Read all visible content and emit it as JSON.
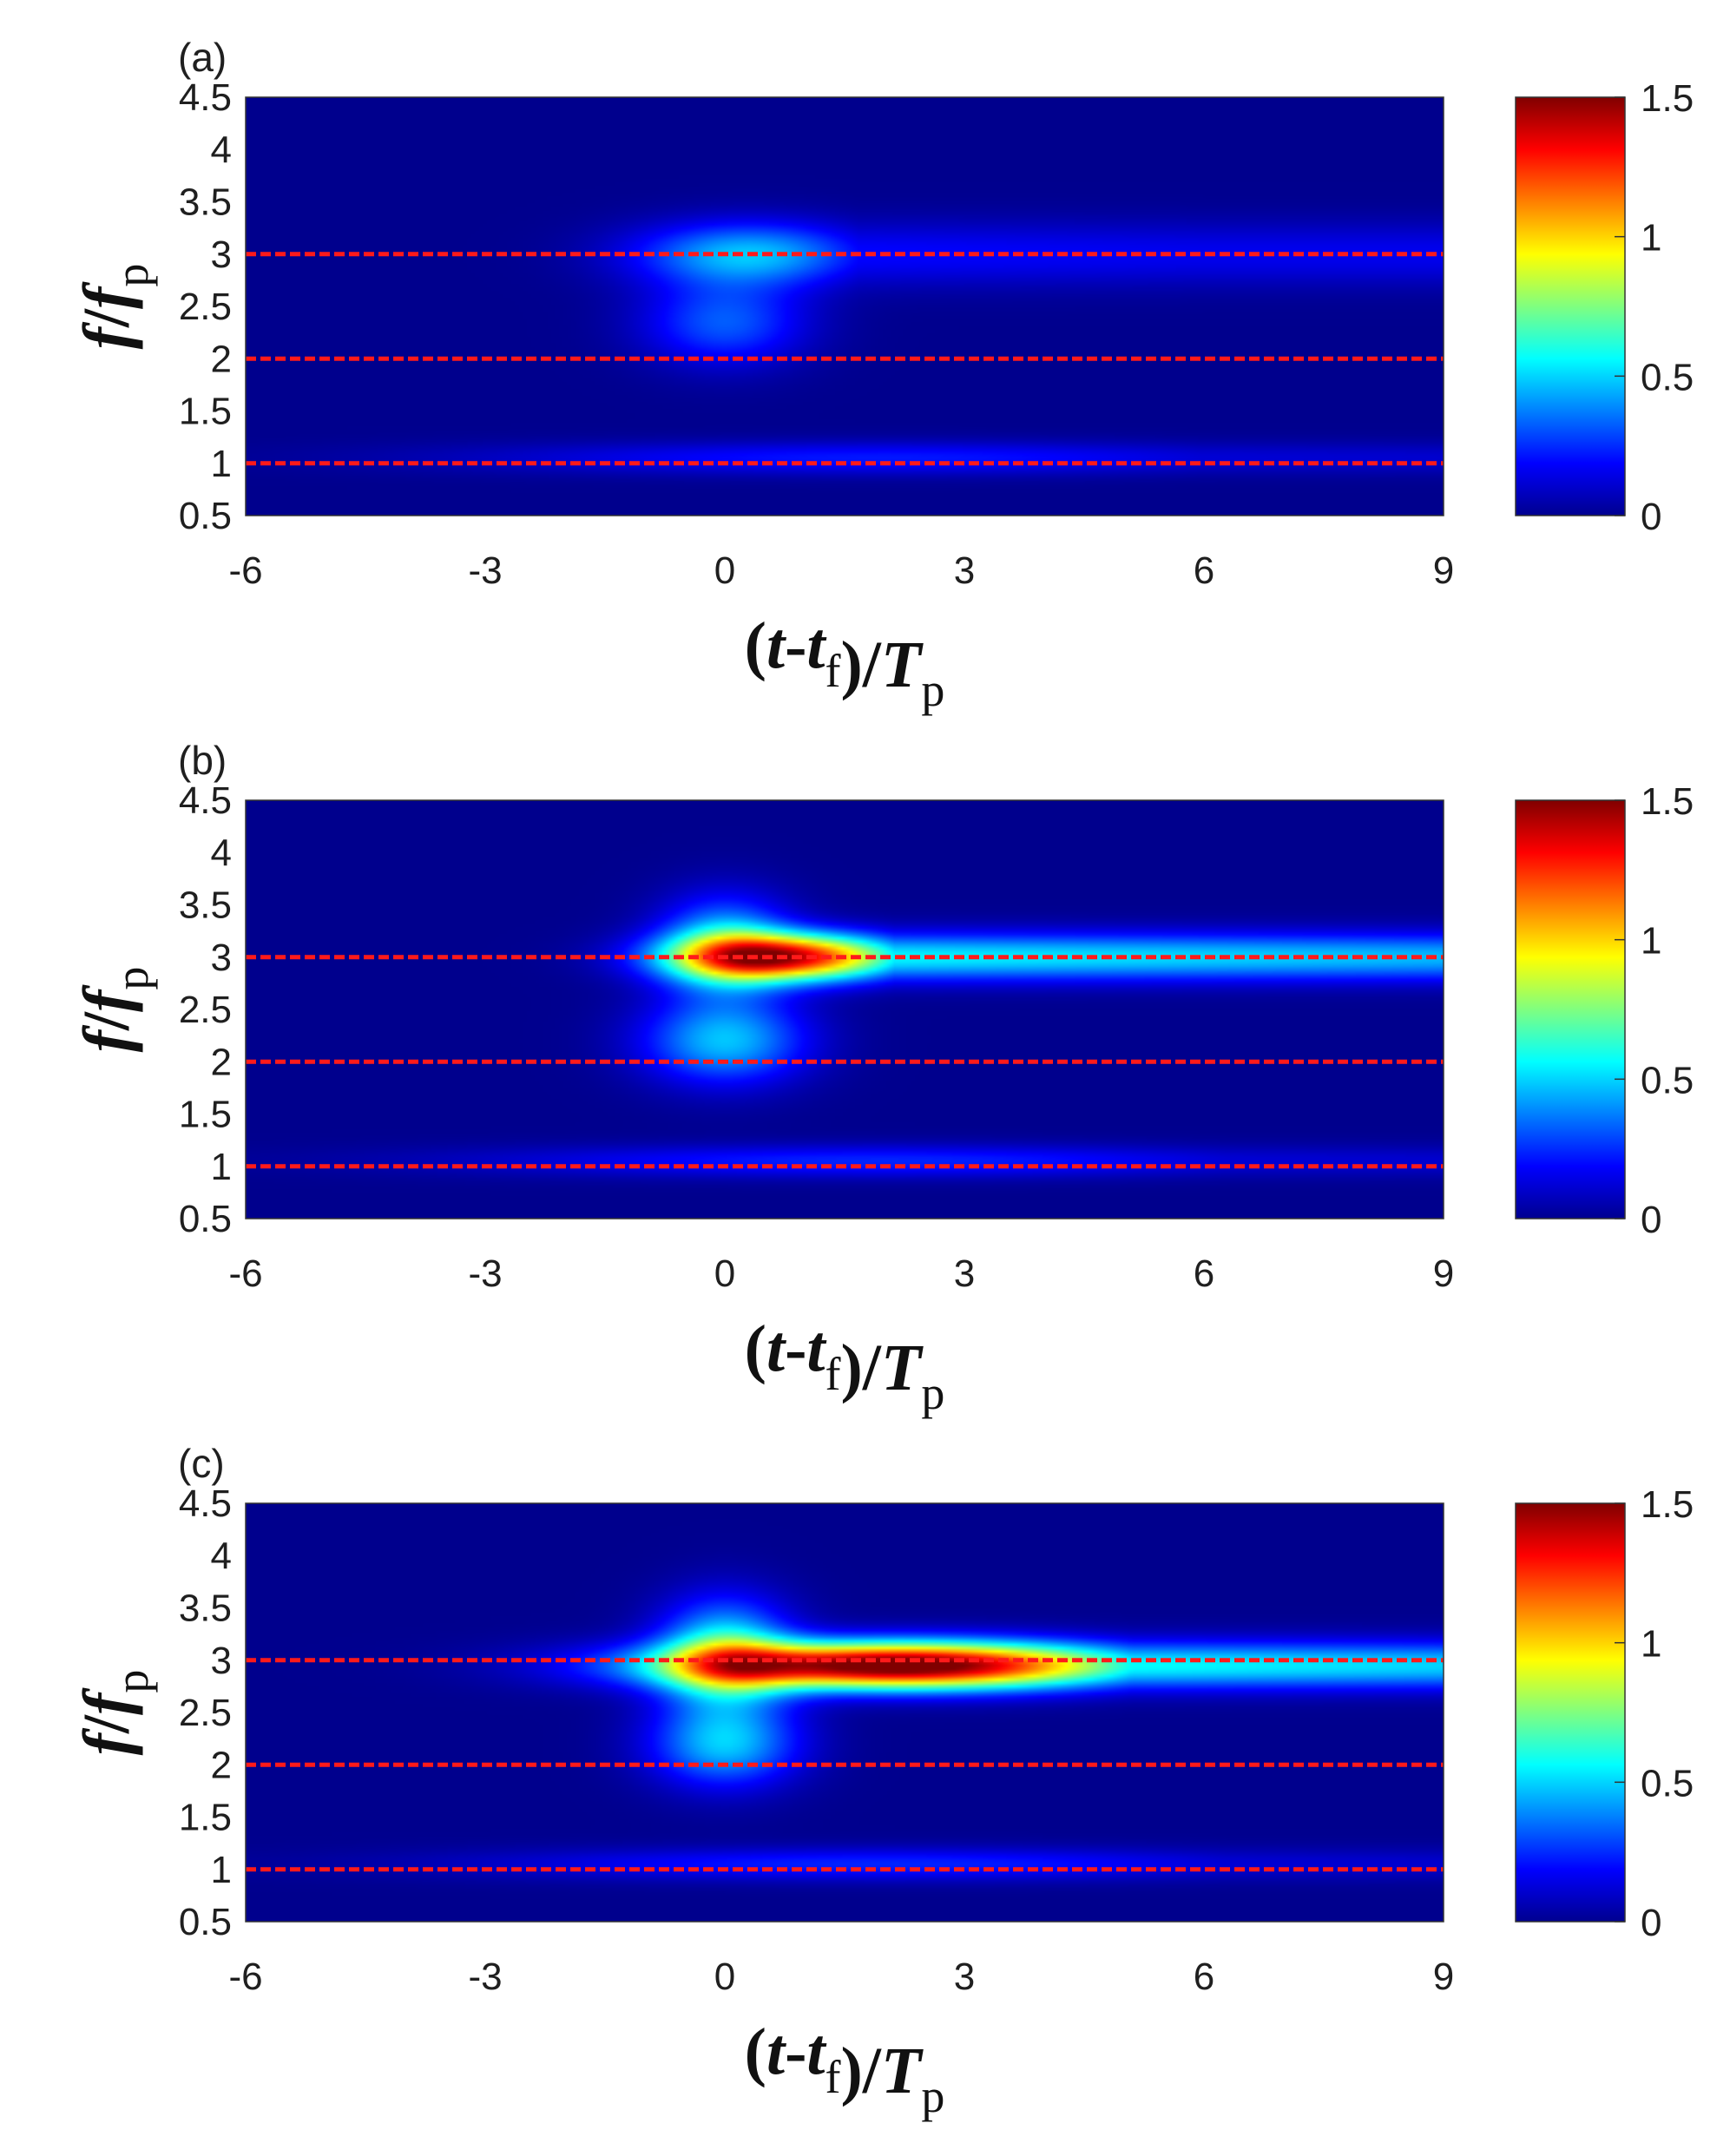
{
  "chart_data": [
    {
      "type": "heatmap",
      "panel_label": "(a)",
      "xlabel": {
        "open": "(",
        "t": "t",
        "dash": "-",
        "t2": "t",
        "sub_f": "f",
        "close": ")/",
        "T": "T",
        "sub_p": "p"
      },
      "ylabel": {
        "f1": "f",
        "slash": "/",
        "f2": "f",
        "sub_p": "p"
      },
      "xlim": [
        -6,
        9
      ],
      "ylim": [
        0.5,
        4.5
      ],
      "xticks": [
        "-6",
        "-3",
        "0",
        "3",
        "6",
        "9"
      ],
      "yticks": [
        "0.5",
        "1",
        "1.5",
        "2",
        "2.5",
        "3",
        "3.5",
        "4",
        "4.5"
      ],
      "colorbar": {
        "range": [
          0,
          1.5
        ],
        "ticks": [
          "0",
          "0.5",
          "1",
          "1.5"
        ],
        "colormap": "jet"
      },
      "reference_lines": {
        "y": [
          1,
          2,
          3
        ],
        "color": "#ff1a1a",
        "style": "dashed"
      },
      "features": [
        {
          "t": 0.3,
          "f": 3.0,
          "value": 0.45,
          "width_t": 1.4,
          "width_f": 0.3,
          "tail_to": 6,
          "tail_value": 0.18
        },
        {
          "t": 0.0,
          "f": 2.35,
          "value": 0.3,
          "width_t": 1.0,
          "width_f": 0.4
        },
        {
          "t": 2.0,
          "f": 1.05,
          "value": 0.2,
          "width_t": 5.0,
          "width_f": 0.15,
          "tail_to": 9,
          "tail_value": 0.12
        }
      ]
    },
    {
      "type": "heatmap",
      "panel_label": "(b)",
      "xlabel": {
        "open": "(",
        "t": "t",
        "dash": "-",
        "t2": "t",
        "sub_f": "f",
        "close": ")/",
        "T": "T",
        "sub_p": "p"
      },
      "ylabel": {
        "f1": "f",
        "slash": "/",
        "f2": "f",
        "sub_p": "p"
      },
      "xlim": [
        -6,
        9
      ],
      "ylim": [
        0.5,
        4.5
      ],
      "xticks": [
        "-6",
        "-3",
        "0",
        "3",
        "6",
        "9"
      ],
      "yticks": [
        "0.5",
        "1",
        "1.5",
        "2",
        "2.5",
        "3",
        "3.5",
        "4",
        "4.5"
      ],
      "colorbar": {
        "range": [
          0,
          1.5
        ],
        "ticks": [
          "0",
          "0.5",
          "1",
          "1.5"
        ],
        "colormap": "jet"
      },
      "reference_lines": {
        "y": [
          1,
          2,
          3
        ],
        "color": "#ff1a1a",
        "style": "dashed"
      },
      "features": [
        {
          "t": 0.8,
          "f": 3.0,
          "value": 1.3,
          "width_t": 1.4,
          "width_f": 0.22,
          "tail_to": 9,
          "tail_value": 0.55
        },
        {
          "t": 0.0,
          "f": 3.1,
          "value": 0.5,
          "width_t": 0.8,
          "width_f": 0.45
        },
        {
          "t": 0.0,
          "f": 2.2,
          "value": 0.45,
          "width_t": 1.0,
          "width_f": 0.4
        },
        {
          "t": 2.0,
          "f": 1.05,
          "value": 0.22,
          "width_t": 5.0,
          "width_f": 0.15,
          "tail_to": 9,
          "tail_value": 0.12
        }
      ]
    },
    {
      "type": "heatmap",
      "panel_label": "(c)",
      "xlabel": {
        "open": "(",
        "t": "t",
        "dash": "-",
        "t2": "t",
        "sub_f": "f",
        "close": ")/",
        "T": "T",
        "sub_p": "p"
      },
      "ylabel": {
        "f1": "f",
        "slash": "/",
        "f2": "f",
        "sub_p": "p"
      },
      "xlim": [
        -6,
        9
      ],
      "ylim": [
        0.5,
        4.5
      ],
      "xticks": [
        "-6",
        "-3",
        "0",
        "3",
        "6",
        "9"
      ],
      "yticks": [
        "0.5",
        "1",
        "1.5",
        "2",
        "2.5",
        "3",
        "3.5",
        "4",
        "4.5"
      ],
      "colorbar": {
        "range": [
          0,
          1.5
        ],
        "ticks": [
          "0",
          "0.5",
          "1",
          "1.5"
        ],
        "colormap": "jet"
      },
      "reference_lines": {
        "y": [
          1,
          2,
          3
        ],
        "color": "#ff1a1a",
        "style": "dashed"
      },
      "features": [
        {
          "t": 2.2,
          "f": 2.95,
          "value": 1.6,
          "width_t": 2.8,
          "width_f": 0.22,
          "tail_to": 9,
          "tail_value": 0.6
        },
        {
          "t": 0.0,
          "f": 3.05,
          "value": 0.6,
          "width_t": 0.8,
          "width_f": 0.5
        },
        {
          "t": 0.0,
          "f": 2.2,
          "value": 0.45,
          "width_t": 0.9,
          "width_f": 0.4
        },
        {
          "t": 2.0,
          "f": 1.05,
          "value": 0.22,
          "width_t": 5.0,
          "width_f": 0.15,
          "tail_to": 9,
          "tail_value": 0.12
        }
      ]
    }
  ]
}
